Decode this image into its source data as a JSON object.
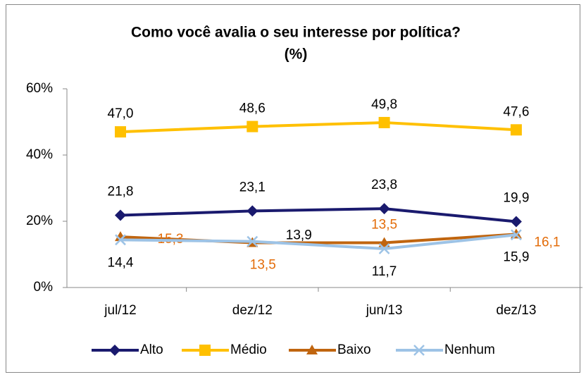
{
  "chart_data": {
    "type": "line",
    "title": "Como você avalia o seu interesse por política?",
    "subtitle": "(%)",
    "categories": [
      "jul/12",
      "dez/12",
      "jun/13",
      "dez/13"
    ],
    "series": [
      {
        "name": "Alto",
        "color": "#1a1a6e",
        "marker": "diamond",
        "values": [
          21.8,
          23.1,
          23.8,
          19.9
        ],
        "value_labels": [
          "21,8",
          "23,1",
          "23,8",
          "19,9"
        ]
      },
      {
        "name": "Médio",
        "color": "#ffc000",
        "marker": "square",
        "values": [
          47.0,
          48.6,
          49.8,
          47.6
        ],
        "value_labels": [
          "47,0",
          "48,6",
          "49,8",
          "47,6"
        ]
      },
      {
        "name": "Baixo",
        "color": "#c0650f",
        "label_color": "#e36c09",
        "marker": "triangle",
        "values": [
          15.3,
          13.5,
          13.5,
          16.1
        ],
        "value_labels": [
          "15,3",
          "13,5",
          "13,5",
          "16,1"
        ]
      },
      {
        "name": "Nenhum",
        "color": "#9dc3e6",
        "marker": "x",
        "values": [
          14.4,
          13.9,
          11.7,
          15.9
        ],
        "value_labels": [
          "14,4",
          "13,9",
          "11,7",
          "15,9"
        ]
      }
    ],
    "ylim": [
      0,
      60
    ],
    "yticks": [
      {
        "value": 0,
        "label": "0%"
      },
      {
        "value": 20,
        "label": "20%"
      },
      {
        "value": 40,
        "label": "40%"
      },
      {
        "value": 60,
        "label": "60%"
      }
    ],
    "legend": "bottom"
  }
}
